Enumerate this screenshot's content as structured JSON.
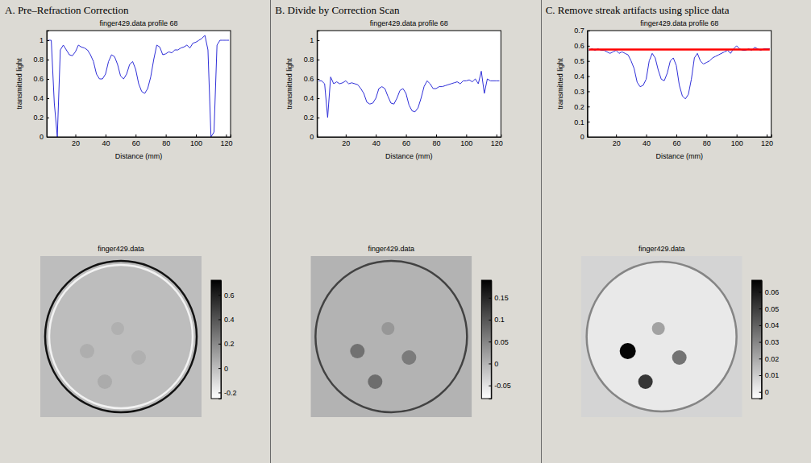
{
  "chart_data": [
    {
      "type": "line",
      "panel_title": "A. Pre–Refraction Correction",
      "title": "finger429.data profile 68",
      "xlabel": "Distance (mm)",
      "ylabel": "transmitted light",
      "x": [
        2,
        4,
        6,
        8,
        10,
        12,
        14,
        16,
        18,
        20,
        22,
        24,
        26,
        28,
        30,
        32,
        34,
        36,
        38,
        40,
        42,
        44,
        46,
        48,
        50,
        52,
        54,
        56,
        58,
        60,
        62,
        64,
        66,
        68,
        70,
        72,
        74,
        76,
        78,
        80,
        82,
        84,
        86,
        88,
        90,
        92,
        94,
        96,
        98,
        100,
        102,
        104,
        106,
        108,
        110,
        112,
        114,
        116,
        118,
        120,
        122
      ],
      "series": [
        {
          "color": "#2f2fd8",
          "values": [
            1.0,
            1.0,
            0.35,
            0.0,
            0.9,
            0.95,
            0.9,
            0.85,
            0.84,
            0.88,
            0.95,
            0.93,
            0.92,
            0.9,
            0.85,
            0.78,
            0.65,
            0.6,
            0.6,
            0.65,
            0.78,
            0.85,
            0.83,
            0.75,
            0.63,
            0.6,
            0.65,
            0.75,
            0.78,
            0.7,
            0.55,
            0.47,
            0.45,
            0.5,
            0.62,
            0.8,
            0.95,
            0.93,
            0.85,
            0.86,
            0.88,
            0.87,
            0.9,
            0.9,
            0.92,
            0.93,
            0.95,
            0.92,
            0.97,
            0.98,
            1.0,
            1.02,
            1.05,
            0.9,
            0.0,
            0.05,
            0.95,
            1.0,
            1.0,
            1.0,
            1.0
          ]
        }
      ],
      "xlim": [
        1,
        123
      ],
      "xticks": [
        20,
        40,
        60,
        80,
        100,
        120
      ],
      "ylim": [
        0,
        1.1
      ],
      "yticks": [
        0,
        0.2,
        0.4,
        0.6,
        0.8,
        1
      ],
      "grid": false
    },
    {
      "type": "image",
      "title": "finger429.data",
      "xlim": [
        0,
        100
      ],
      "ylim": [
        0,
        100
      ],
      "tick_labels": false,
      "colorbar": {
        "range": [
          -0.25,
          0.72
        ],
        "ticks": [
          -0.2,
          0,
          0.2,
          0.4,
          0.6
        ]
      },
      "background": 0.0,
      "disc": {
        "cx": 50,
        "cy": 50,
        "r": 46,
        "value": 0.0
      },
      "rings": [
        {
          "r": 47,
          "value": 0.65
        },
        {
          "r": 44.5,
          "value": -0.2
        }
      ],
      "spots": [
        {
          "cx": 48,
          "cy": 45,
          "r": 4,
          "value": 0.05
        },
        {
          "cx": 29,
          "cy": 59,
          "r": 4.5,
          "value": 0.06
        },
        {
          "cx": 61,
          "cy": 63,
          "r": 4.5,
          "value": 0.05
        },
        {
          "cx": 40,
          "cy": 78,
          "r": 4.5,
          "value": 0.07
        }
      ]
    },
    {
      "type": "line",
      "panel_title": "B. Divide by Correction Scan",
      "title": "finger429.data profile 68",
      "xlabel": "Distance (mm)",
      "ylabel": "transmitted light",
      "x": [
        2,
        4,
        6,
        8,
        10,
        12,
        14,
        16,
        18,
        20,
        22,
        24,
        26,
        28,
        30,
        32,
        34,
        36,
        38,
        40,
        42,
        44,
        46,
        48,
        50,
        52,
        54,
        56,
        58,
        60,
        62,
        64,
        66,
        68,
        70,
        72,
        74,
        76,
        78,
        80,
        82,
        84,
        86,
        88,
        90,
        92,
        94,
        96,
        98,
        100,
        102,
        104,
        106,
        108,
        110,
        112,
        114,
        116,
        118,
        120,
        122
      ],
      "series": [
        {
          "color": "#2f2fd8",
          "values": [
            0.58,
            0.58,
            0.55,
            0.2,
            0.62,
            0.55,
            0.57,
            0.55,
            0.56,
            0.58,
            0.55,
            0.56,
            0.55,
            0.54,
            0.5,
            0.45,
            0.36,
            0.34,
            0.35,
            0.4,
            0.5,
            0.52,
            0.5,
            0.42,
            0.35,
            0.34,
            0.4,
            0.48,
            0.5,
            0.45,
            0.33,
            0.27,
            0.26,
            0.3,
            0.4,
            0.52,
            0.58,
            0.55,
            0.5,
            0.5,
            0.52,
            0.52,
            0.53,
            0.54,
            0.55,
            0.56,
            0.57,
            0.55,
            0.58,
            0.58,
            0.59,
            0.57,
            0.6,
            0.55,
            0.68,
            0.45,
            0.6,
            0.58,
            0.58,
            0.58,
            0.58
          ]
        }
      ],
      "xlim": [
        1,
        123
      ],
      "xticks": [
        20,
        40,
        60,
        80,
        100,
        120
      ],
      "ylim": [
        0,
        1.1
      ],
      "yticks": [
        0,
        0.2,
        0.4,
        0.6,
        0.8,
        1
      ],
      "grid": false
    },
    {
      "type": "image",
      "title": "finger429.data",
      "xlim": [
        0,
        100
      ],
      "ylim": [
        0,
        100
      ],
      "tick_labels": false,
      "colorbar": {
        "range": [
          -0.08,
          0.19
        ],
        "ticks": [
          -0.05,
          0,
          0.05,
          0.1,
          0.15
        ]
      },
      "background": 0.0,
      "disc": {
        "cx": 50,
        "cy": 50,
        "r": 46,
        "value": 0.0
      },
      "rings": [
        {
          "r": 47,
          "value": 0.12
        }
      ],
      "spots": [
        {
          "cx": 48,
          "cy": 45,
          "r": 4,
          "value": 0.03
        },
        {
          "cx": 29,
          "cy": 59,
          "r": 4.5,
          "value": 0.07
        },
        {
          "cx": 61,
          "cy": 63,
          "r": 4.5,
          "value": 0.06
        },
        {
          "cx": 40,
          "cy": 78,
          "r": 4.5,
          "value": 0.075
        }
      ]
    },
    {
      "type": "line",
      "panel_title": "C. Remove streak artifacts using splice data",
      "title": "finger429.data profile 68",
      "xlabel": "Distance (mm)",
      "ylabel": "transmitted light",
      "x": [
        2,
        4,
        6,
        8,
        10,
        12,
        14,
        16,
        18,
        20,
        22,
        24,
        26,
        28,
        30,
        32,
        34,
        36,
        38,
        40,
        42,
        44,
        46,
        48,
        50,
        52,
        54,
        56,
        58,
        60,
        62,
        64,
        66,
        68,
        70,
        72,
        74,
        76,
        78,
        80,
        82,
        84,
        86,
        88,
        90,
        92,
        94,
        96,
        98,
        100,
        102,
        104,
        106,
        108,
        110,
        112,
        114,
        116,
        118,
        120,
        122
      ],
      "series": [
        {
          "color": "#2f2fd8",
          "values": [
            0.57,
            0.58,
            0.57,
            0.58,
            0.57,
            0.57,
            0.56,
            0.55,
            0.56,
            0.57,
            0.55,
            0.56,
            0.55,
            0.54,
            0.5,
            0.45,
            0.36,
            0.33,
            0.34,
            0.38,
            0.5,
            0.55,
            0.52,
            0.44,
            0.38,
            0.37,
            0.42,
            0.5,
            0.52,
            0.47,
            0.34,
            0.27,
            0.25,
            0.28,
            0.38,
            0.52,
            0.55,
            0.5,
            0.48,
            0.49,
            0.5,
            0.52,
            0.53,
            0.54,
            0.55,
            0.56,
            0.57,
            0.55,
            0.58,
            0.6,
            0.58,
            0.57,
            0.57,
            0.58,
            0.57,
            0.59,
            0.58,
            0.57,
            0.58,
            0.58,
            0.58
          ]
        },
        {
          "color": "#ff0000",
          "values": [
            0.575,
            0.575,
            0.575,
            0.575,
            0.575,
            0.575,
            0.575,
            0.575,
            0.575,
            0.575,
            0.575,
            0.575,
            0.575,
            0.575,
            0.575,
            0.575,
            0.575,
            0.575,
            0.575,
            0.575,
            0.575,
            0.575,
            0.575,
            0.575,
            0.575,
            0.575,
            0.575,
            0.575,
            0.575,
            0.575,
            0.575,
            0.575,
            0.575,
            0.575,
            0.575,
            0.575,
            0.575,
            0.575,
            0.575,
            0.575,
            0.575,
            0.575,
            0.575,
            0.575,
            0.575,
            0.575,
            0.575,
            0.575,
            0.575,
            0.575,
            0.575,
            0.575,
            0.575,
            0.575,
            0.575,
            0.575,
            0.575,
            0.575,
            0.575,
            0.575,
            0.575
          ]
        }
      ],
      "xlim": [
        1,
        123
      ],
      "xticks": [
        20,
        40,
        60,
        80,
        100,
        120
      ],
      "ylim": [
        0,
        0.7
      ],
      "yticks": [
        0,
        0.1,
        0.2,
        0.3,
        0.4,
        0.5,
        0.6,
        0.7
      ],
      "grid": false
    },
    {
      "type": "image",
      "title": "finger429.data",
      "xlim": [
        0,
        100
      ],
      "ylim": [
        0,
        100
      ],
      "tick_labels": false,
      "colorbar": {
        "range": [
          -0.004,
          0.067
        ],
        "ticks": [
          0,
          0.01,
          0.02,
          0.03,
          0.04,
          0.05,
          0.06
        ]
      },
      "background": 0.008,
      "disc": {
        "cx": 50,
        "cy": 50,
        "r": 46,
        "value": 0.002
      },
      "rings": [
        {
          "r": 46.5,
          "value": 0.03
        }
      ],
      "spots": [
        {
          "cx": 48,
          "cy": 45,
          "r": 4,
          "value": 0.022
        },
        {
          "cx": 29,
          "cy": 59,
          "r": 5,
          "value": 0.066
        },
        {
          "cx": 61,
          "cy": 63,
          "r": 4.5,
          "value": 0.035
        },
        {
          "cx": 40,
          "cy": 78,
          "r": 4.5,
          "value": 0.052
        }
      ]
    }
  ]
}
